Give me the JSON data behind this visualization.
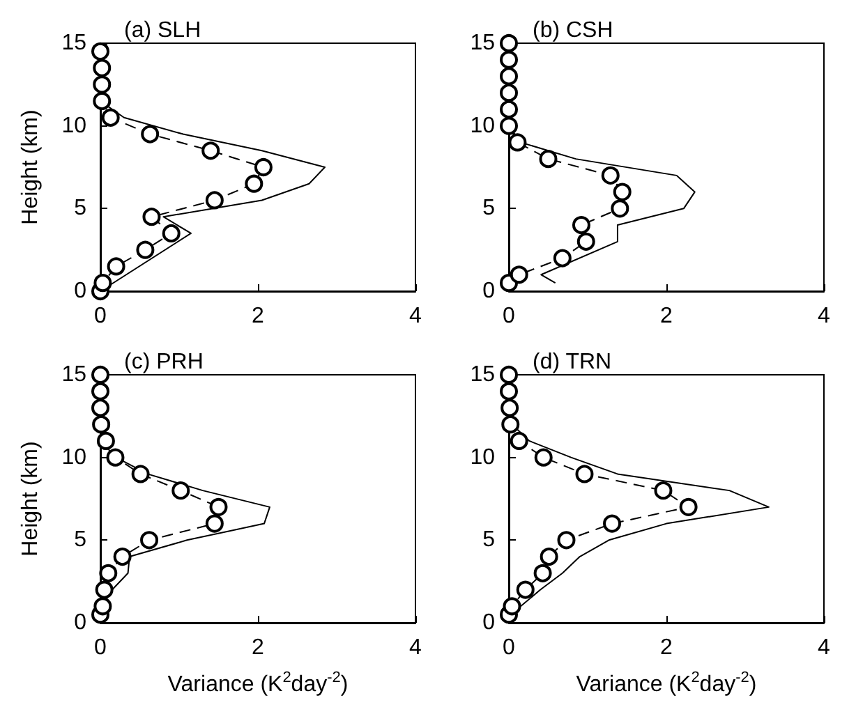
{
  "chart_data": [
    {
      "type": "line",
      "title": "(a) SLH",
      "ylabel": "Height (km)",
      "xlim": [
        0,
        4
      ],
      "xticks": [
        0,
        2,
        4
      ],
      "ylim": [
        0,
        15
      ],
      "yticks": [
        0,
        5,
        10,
        15
      ],
      "grid": false,
      "series": [
        {
          "color": "#000000",
          "line_style": "solid",
          "marker": "none",
          "x": [
            0,
            1.15,
            0.8,
            2.05,
            2.65,
            2.85,
            2.05,
            1.05,
            0.3,
            0,
            0
          ],
          "values": [
            0,
            3.5,
            4.5,
            5.5,
            6.5,
            7.5,
            8.5,
            9.5,
            10.5,
            11.5,
            15
          ]
        },
        {
          "color": "#000000",
          "line_style": "dashed",
          "marker": "circle",
          "x": [
            0,
            0.03,
            0.2,
            0.57,
            0.9,
            0.65,
            1.45,
            1.95,
            2.07,
            1.4,
            0.63,
            0.13,
            0.02,
            0.02,
            0.02,
            0
          ],
          "values": [
            0,
            0.5,
            1.5,
            2.5,
            3.5,
            4.5,
            5.5,
            6.5,
            7.5,
            8.5,
            9.5,
            10.5,
            11.5,
            12.5,
            13.5,
            14.5
          ]
        }
      ]
    },
    {
      "type": "line",
      "title": "(b) CSH",
      "xlim": [
        0,
        4
      ],
      "xticks": [
        0,
        2,
        4
      ],
      "ylim": [
        0,
        15
      ],
      "yticks": [
        0,
        5,
        10,
        15
      ],
      "grid": false,
      "series": [
        {
          "color": "#000000",
          "line_style": "solid",
          "marker": "none",
          "x": [
            0.59,
            0.41,
            1.38,
            1.38,
            2.22,
            2.36,
            2.13,
            0.85,
            0.15,
            0,
            0
          ],
          "values": [
            0.5,
            1,
            3,
            4,
            5,
            6,
            7,
            8,
            9,
            10,
            15
          ]
        },
        {
          "color": "#000000",
          "line_style": "dashed",
          "marker": "circle",
          "x": [
            0,
            0.13,
            0.68,
            0.98,
            0.92,
            1.41,
            1.44,
            1.29,
            0.5,
            0.11,
            0,
            0,
            0,
            0,
            0,
            0
          ],
          "values": [
            0.5,
            1,
            2,
            3,
            4,
            5,
            6,
            7,
            8,
            9,
            10,
            11,
            12,
            13,
            14,
            15
          ]
        }
      ]
    },
    {
      "type": "line",
      "title": "(c) PRH",
      "xlabel": "Variance (K$^{2}$day$^{-2}$)",
      "ylabel": "Height (km)",
      "xlim": [
        0,
        4
      ],
      "xticks": [
        0,
        2,
        4
      ],
      "ylim": [
        0,
        15
      ],
      "yticks": [
        0,
        5,
        10,
        15
      ],
      "grid": false,
      "series": [
        {
          "color": "#000000",
          "line_style": "solid",
          "marker": "none",
          "x": [
            0,
            0.02,
            0.15,
            0.35,
            0.37,
            1.1,
            2.08,
            2.15,
            1.3,
            0.6,
            0.2,
            0,
            0
          ],
          "values": [
            0,
            1,
            2,
            3,
            4,
            5,
            6,
            7,
            8,
            9,
            10,
            11,
            15
          ]
        },
        {
          "color": "#000000",
          "line_style": "dashed",
          "marker": "circle",
          "x": [
            0,
            0.03,
            0.05,
            0.1,
            0.28,
            0.62,
            1.45,
            1.5,
            1.02,
            0.51,
            0.19,
            0.07,
            0.01,
            0,
            0,
            0
          ],
          "values": [
            0.5,
            1,
            2,
            3,
            4,
            5,
            6,
            7,
            8,
            9,
            10,
            11,
            12,
            13,
            14,
            15
          ]
        }
      ]
    },
    {
      "type": "line",
      "title": "(d) TRN",
      "xlabel": "Variance (K$^{2}$day$^{-2}$)",
      "xlim": [
        0,
        4
      ],
      "xticks": [
        0,
        2,
        4
      ],
      "ylim": [
        0,
        15
      ],
      "yticks": [
        0,
        5,
        10,
        15
      ],
      "grid": false,
      "series": [
        {
          "color": "#000000",
          "line_style": "solid",
          "marker": "none",
          "x": [
            0,
            0.15,
            0.4,
            0.68,
            0.9,
            1.27,
            2.0,
            3.3,
            2.8,
            1.38,
            0.79,
            0.26,
            0.04,
            0,
            0,
            0
          ],
          "values": [
            0,
            1,
            2,
            3,
            4,
            5,
            6,
            7,
            8,
            9,
            10,
            11,
            12,
            13,
            14,
            15
          ]
        },
        {
          "color": "#000000",
          "line_style": "dashed",
          "marker": "circle",
          "x": [
            0,
            0.04,
            0.21,
            0.43,
            0.51,
            0.73,
            1.31,
            2.28,
            1.96,
            0.96,
            0.44,
            0.13,
            0.02,
            0.01,
            0,
            0
          ],
          "values": [
            0.5,
            1,
            2,
            3,
            4,
            5,
            6,
            7,
            8,
            9,
            10,
            11,
            12,
            13,
            14,
            15
          ]
        }
      ]
    }
  ]
}
